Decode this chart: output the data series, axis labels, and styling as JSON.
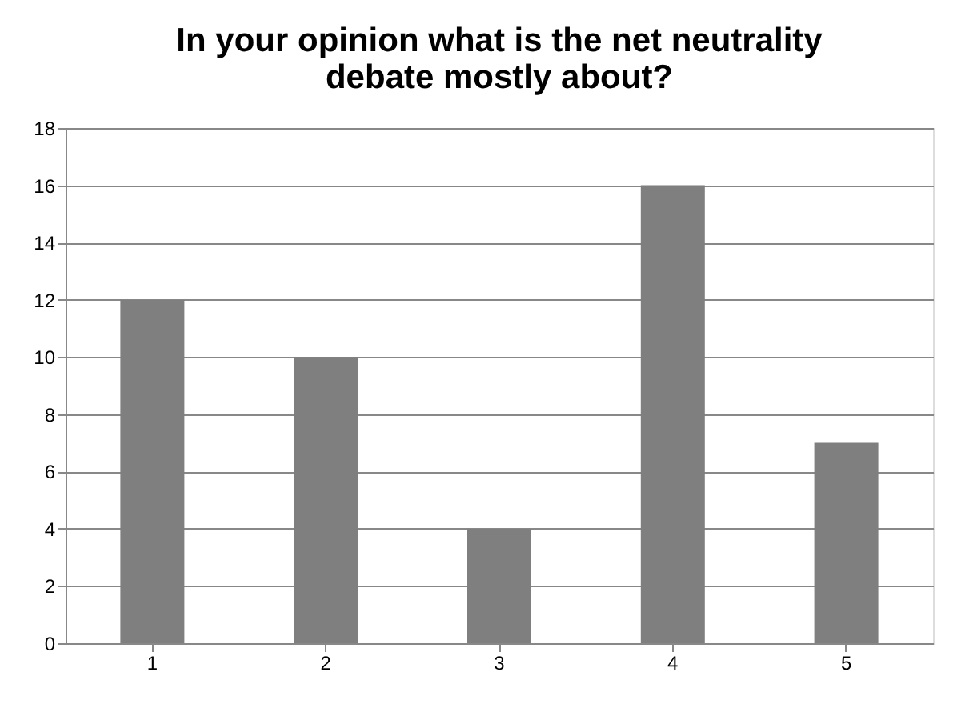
{
  "chart_data": {
    "type": "bar",
    "title": [
      "In your opinion what is the net neutrality",
      "debate mostly about?"
    ],
    "categories": [
      "1",
      "2",
      "3",
      "4",
      "5"
    ],
    "values": [
      12,
      10,
      4,
      16,
      7
    ],
    "color": "#7f7f7f",
    "ylim": [
      0,
      18
    ],
    "yticks": [
      0,
      2,
      4,
      6,
      8,
      10,
      12,
      14,
      16,
      18
    ],
    "grid": "y"
  }
}
